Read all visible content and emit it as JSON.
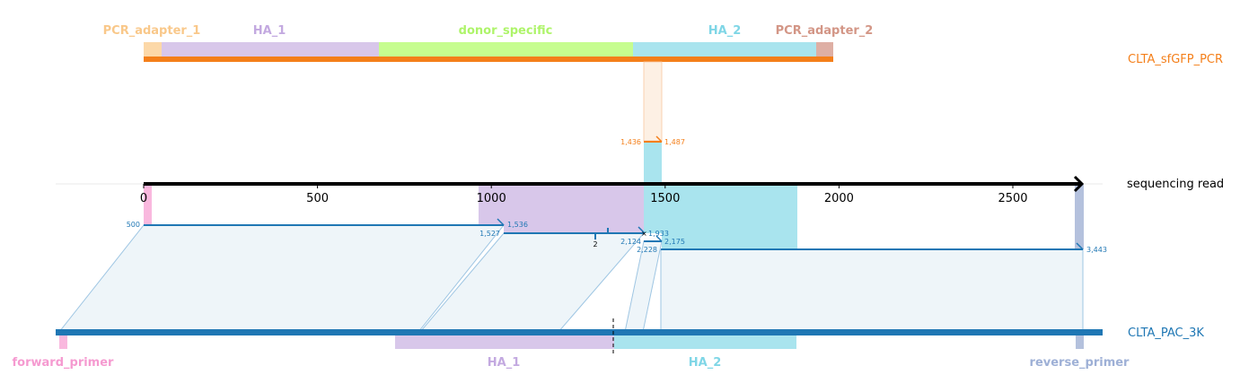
{
  "colors": {
    "pcr_adapter_1": "#fcd8a8",
    "pcr_adapter_1_text": "#f9c88a",
    "ha_1": "#d8c7ea",
    "ha_1_text": "#c3a9e0",
    "donor_specific": "#c6fd8f",
    "donor_specific_text": "#aef46a",
    "ha_2": "#a9e4ee",
    "ha_2_text": "#7fd6e6",
    "pcr_adapter_2": "#deafa4",
    "pcr_adapter_2_text": "#d39686",
    "forward_primer": "#f9b8de",
    "forward_primer_text": "#f59ad0",
    "reverse_primer": "#b4c1dd",
    "reverse_primer_text": "#9eb0d6",
    "orange": "#f47f1a",
    "blue": "#1f77b4",
    "blue_light": "#9fc6e3",
    "fill_light": "#eef5f9"
  },
  "top_track": {
    "name": "CLTA_sfGFP_PCR",
    "features": [
      {
        "label": "PCR_adapter_1",
        "key": "pcr_adapter_1"
      },
      {
        "label": "HA_1",
        "key": "ha_1"
      },
      {
        "label": "donor_specific",
        "key": "donor_specific"
      },
      {
        "label": "HA_2",
        "key": "ha_2"
      },
      {
        "label": "PCR_adapter_2",
        "key": "pcr_adapter_2"
      }
    ],
    "alignment": {
      "query_start": "1,436",
      "query_end": "1,487"
    }
  },
  "read_track": {
    "name": "sequencing read",
    "ticks": [
      "0",
      "500",
      "1000",
      "1500",
      "2000",
      "2500"
    ],
    "tick_values": [
      0,
      500,
      1000,
      1500,
      2000,
      2500
    ]
  },
  "bottom_track": {
    "name": "CLTA_PAC_3K",
    "features": [
      {
        "label": "forward_primer",
        "key": "forward_primer"
      },
      {
        "label": "HA_1",
        "key": "ha_1"
      },
      {
        "label": "HA_2",
        "key": "ha_2"
      },
      {
        "label": "reverse_primer",
        "key": "reverse_primer"
      }
    ],
    "alignment_labels": {
      "a1_start": "500",
      "a1_end": "1,536",
      "a2_start": "1,527",
      "a2_end": "1,933",
      "indel": "2",
      "a3_start": "2,124",
      "a3_end": "2,175",
      "a4_start": "2,228",
      "a4_end": "3,443"
    }
  }
}
